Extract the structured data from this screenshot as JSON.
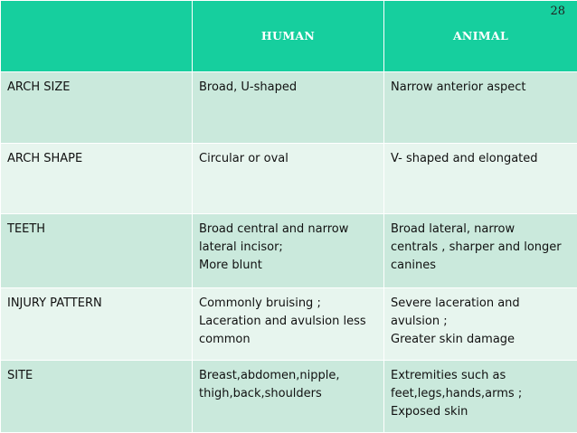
{
  "page_number": "28",
  "header": {
    "col1": "",
    "col2": "HUMAN",
    "col3": "ANIMAL"
  },
  "rows": [
    {
      "label": "ARCH SIZE",
      "human": "Broad, U-shaped",
      "animal": "Narrow anterior aspect"
    },
    {
      "label": "ARCH SHAPE",
      "human": "Circular or oval",
      "animal": "V- shaped and elongated"
    },
    {
      "label": "TEETH",
      "human": "Broad central and narrow\nlateral incisor;\nMore blunt",
      "animal": "Broad lateral, narrow\ncentrals , sharper and longer\ncanines"
    },
    {
      "label": "INJURY PATTERN",
      "human": "Commonly bruising ;\nLaceration and avulsion less\ncommon",
      "animal": "Severe laceration and\navulsion ;\nGreater skin damage"
    },
    {
      "label": "SITE",
      "human": "Breast,abdomen,nipple,\nthigh,back,shoulders",
      "animal": "Extremities such as\nfeet,legs,hands,arms ;\nExposed skin"
    }
  ]
}
